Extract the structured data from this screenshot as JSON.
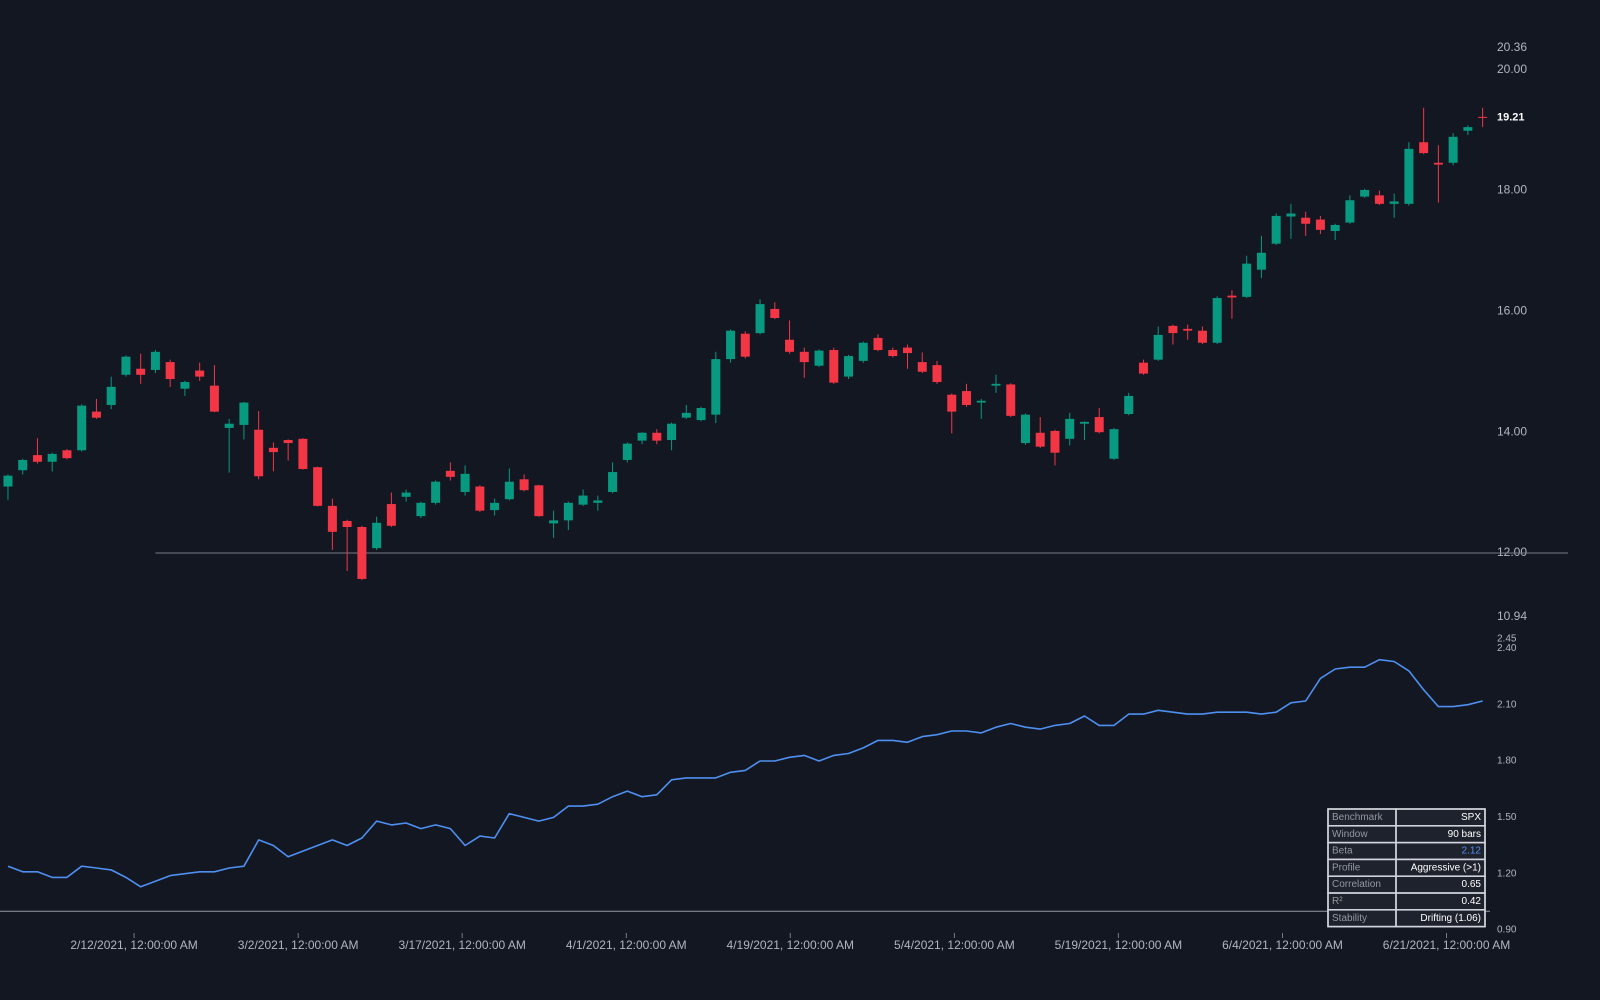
{
  "chart_data": [
    {
      "type": "candlestick",
      "up_color": "#089981",
      "down_color": "#f23645",
      "ylim": [
        10.94,
        20.36
      ],
      "yticks": [
        {
          "value": 20,
          "label": "20.00"
        },
        {
          "value": 18,
          "label": "18.00"
        },
        {
          "value": 16,
          "label": "16.00"
        },
        {
          "value": 14,
          "label": "14.00"
        },
        {
          "value": 12,
          "label": "12.00"
        }
      ],
      "reference_line": {
        "value": 12,
        "from_bar": 10
      },
      "open": [
        13.1,
        13.37,
        13.62,
        13.51,
        13.7,
        13.7,
        14.34,
        14.45,
        14.95,
        15.05,
        15.03,
        15.16,
        14.72,
        15.02,
        14.77,
        14.07,
        14.12,
        14.04,
        13.74,
        13.87,
        13.89,
        13.42,
        12.78,
        12.53,
        12.43,
        12.08,
        12.81,
        12.93,
        12.61,
        12.83,
        13.36,
        13.01,
        13.1,
        12.71,
        12.89,
        13.22,
        13.12,
        12.49,
        12.54,
        12.8,
        12.83,
        13.01,
        13.54,
        13.86,
        13.99,
        13.87,
        14.24,
        14.2,
        14.29,
        15.21,
        15.63,
        15.64,
        16.04,
        15.53,
        15.33,
        15.1,
        15.36,
        14.92,
        15.18,
        15.56,
        15.36,
        15.4,
        15.16,
        15.11,
        14.62,
        14.68,
        14.49,
        14.77,
        14.79,
        13.82,
        13.99,
        14.02,
        13.89,
        14.14,
        14.25,
        13.56,
        14.3,
        15.15,
        15.2,
        15.76,
        15.71,
        15.68,
        15.48,
        16.26,
        16.24,
        16.69,
        17.12,
        17.57,
        17.55,
        17.52,
        17.33,
        17.47,
        17.9,
        17.92,
        17.78,
        17.78,
        18.8,
        18.46,
        18.46,
        18.99,
        19.22
      ],
      "high": [
        13.3,
        13.56,
        13.9,
        13.66,
        13.72,
        14.46,
        14.55,
        14.92,
        15.27,
        15.3,
        15.36,
        15.2,
        14.85,
        15.15,
        15.11,
        14.22,
        14.5,
        14.35,
        13.83,
        13.88,
        13.9,
        13.43,
        12.9,
        12.55,
        12.45,
        12.6,
        13.0,
        13.05,
        12.85,
        13.2,
        13.5,
        13.45,
        13.12,
        12.9,
        13.4,
        13.3,
        13.13,
        12.7,
        12.85,
        13.05,
        12.95,
        13.5,
        13.83,
        14.0,
        14.05,
        14.16,
        14.45,
        14.42,
        15.33,
        15.7,
        15.67,
        16.2,
        16.15,
        15.85,
        15.4,
        15.37,
        15.4,
        15.28,
        15.5,
        15.62,
        15.4,
        15.45,
        15.32,
        15.18,
        14.64,
        14.8,
        14.55,
        14.95,
        14.81,
        14.31,
        14.25,
        14.04,
        14.32,
        14.18,
        14.4,
        14.07,
        14.65,
        15.2,
        15.75,
        15.78,
        15.78,
        15.75,
        16.25,
        16.35,
        16.92,
        17.25,
        17.62,
        17.78,
        17.65,
        17.58,
        17.45,
        17.92,
        18.03,
        18.0,
        17.95,
        18.8,
        19.37,
        18.75,
        18.95,
        19.08,
        19.37
      ],
      "low": [
        12.88,
        13.3,
        13.48,
        13.35,
        13.55,
        13.68,
        14.22,
        14.38,
        14.92,
        14.8,
        14.98,
        14.75,
        14.6,
        14.85,
        14.33,
        13.33,
        13.88,
        13.22,
        13.35,
        13.53,
        13.38,
        12.77,
        12.05,
        11.7,
        11.55,
        12.05,
        12.43,
        12.85,
        12.58,
        12.8,
        13.2,
        12.95,
        12.68,
        12.62,
        12.87,
        13.02,
        12.6,
        12.25,
        12.38,
        12.78,
        12.7,
        12.99,
        13.5,
        13.8,
        13.8,
        13.7,
        14.22,
        14.18,
        14.15,
        15.15,
        15.22,
        15.62,
        15.87,
        15.3,
        14.9,
        15.08,
        14.8,
        14.88,
        15.15,
        15.34,
        15.24,
        15.05,
        14.98,
        14.8,
        13.98,
        14.42,
        14.22,
        14.65,
        14.25,
        13.79,
        13.74,
        13.45,
        13.78,
        13.87,
        13.98,
        13.54,
        14.28,
        14.95,
        15.18,
        15.45,
        15.53,
        15.46,
        15.46,
        15.88,
        16.22,
        16.55,
        17.1,
        17.2,
        17.25,
        17.28,
        17.18,
        17.45,
        17.88,
        17.76,
        17.55,
        17.75,
        18.6,
        17.8,
        18.42,
        18.92,
        19.05
      ],
      "close": [
        13.28,
        13.54,
        13.51,
        13.64,
        13.57,
        14.44,
        14.24,
        14.75,
        15.25,
        14.95,
        15.33,
        14.88,
        14.83,
        14.92,
        14.34,
        14.14,
        14.49,
        13.27,
        13.67,
        13.82,
        13.39,
        12.78,
        12.35,
        12.43,
        11.57,
        12.5,
        12.45,
        13.0,
        12.83,
        13.18,
        13.26,
        13.31,
        12.7,
        12.83,
        13.18,
        13.04,
        12.61,
        12.54,
        12.83,
        12.95,
        12.87,
        13.34,
        13.81,
        13.99,
        13.86,
        14.14,
        14.32,
        14.4,
        15.21,
        15.68,
        15.25,
        16.12,
        15.89,
        15.33,
        15.16,
        15.35,
        14.82,
        15.26,
        15.48,
        15.36,
        15.26,
        15.31,
        15.0,
        14.83,
        14.34,
        14.45,
        14.52,
        14.8,
        14.27,
        14.29,
        13.76,
        13.66,
        14.22,
        14.17,
        14.0,
        14.05,
        14.6,
        14.97,
        15.61,
        15.64,
        15.68,
        15.48,
        16.22,
        16.23,
        16.79,
        16.97,
        17.58,
        17.62,
        17.45,
        17.35,
        17.43,
        17.84,
        18.01,
        17.78,
        17.82,
        18.69,
        18.62,
        18.43,
        18.89,
        19.05,
        19.21
      ]
    },
    {
      "type": "line",
      "color": "#4e8ff0",
      "ylim": [
        0.9,
        2.45
      ],
      "yticks": [
        {
          "value": 2.4,
          "label": "2.40"
        },
        {
          "value": 2.1,
          "label": "2.10"
        },
        {
          "value": 1.8,
          "label": "1.80"
        },
        {
          "value": 1.5,
          "label": "1.50"
        },
        {
          "value": 1.2,
          "label": "1.20"
        },
        {
          "value": 0.9,
          "label": "0.90"
        }
      ],
      "baseline": 1,
      "values": [
        1.24,
        1.21,
        1.21,
        1.18,
        1.18,
        1.24,
        1.23,
        1.22,
        1.18,
        1.13,
        1.16,
        1.19,
        1.2,
        1.21,
        1.21,
        1.23,
        1.24,
        1.38,
        1.35,
        1.29,
        1.32,
        1.35,
        1.38,
        1.35,
        1.39,
        1.48,
        1.46,
        1.47,
        1.44,
        1.46,
        1.44,
        1.35,
        1.4,
        1.39,
        1.52,
        1.5,
        1.48,
        1.5,
        1.56,
        1.56,
        1.57,
        1.61,
        1.64,
        1.61,
        1.62,
        1.7,
        1.71,
        1.71,
        1.71,
        1.74,
        1.75,
        1.8,
        1.8,
        1.82,
        1.83,
        1.8,
        1.83,
        1.84,
        1.87,
        1.91,
        1.91,
        1.9,
        1.93,
        1.94,
        1.96,
        1.96,
        1.95,
        1.98,
        2.0,
        1.98,
        1.97,
        1.99,
        2.0,
        2.04,
        1.99,
        1.99,
        2.05,
        2.05,
        2.07,
        2.06,
        2.05,
        2.05,
        2.06,
        2.06,
        2.06,
        2.05,
        2.06,
        2.11,
        2.12,
        2.24,
        2.29,
        2.3,
        2.3,
        2.34,
        2.33,
        2.28,
        2.18,
        2.09,
        2.09,
        2.1,
        2.12
      ],
      "xlim": [
        -0.54,
        100.5
      ],
      "xticks": [
        {
          "value": 8.55,
          "label": "2/12/2021, 12:00:00 AM"
        },
        {
          "value": 19.68,
          "label": "3/2/2021, 12:00:00 AM"
        },
        {
          "value": 30.8,
          "label": "3/17/2021, 12:00:00 AM"
        },
        {
          "value": 41.93,
          "label": "4/1/2021, 12:00:00 AM"
        },
        {
          "value": 53.05,
          "label": "4/19/2021, 12:00:00 AM"
        },
        {
          "value": 64.18,
          "label": "5/4/2021, 12:00:00 AM"
        },
        {
          "value": 75.3,
          "label": "5/19/2021, 12:00:00 AM"
        },
        {
          "value": 86.43,
          "label": "6/4/2021, 12:00:00 AM"
        },
        {
          "value": 97.55,
          "label": "6/21/2021, 12:00:00 AM"
        }
      ]
    }
  ],
  "stats_table": {
    "rows": [
      [
        "Benchmark",
        "SPX"
      ],
      [
        "Window",
        "90 bars"
      ],
      [
        "Beta",
        "2.12"
      ],
      [
        "Profile",
        "Aggressive (>1)"
      ],
      [
        "Correlation",
        "0.65"
      ],
      [
        "R²",
        "0.42"
      ],
      [
        "Stability",
        "Drifting (1.06)"
      ]
    ],
    "highlight_color": "#4e8ff0"
  }
}
